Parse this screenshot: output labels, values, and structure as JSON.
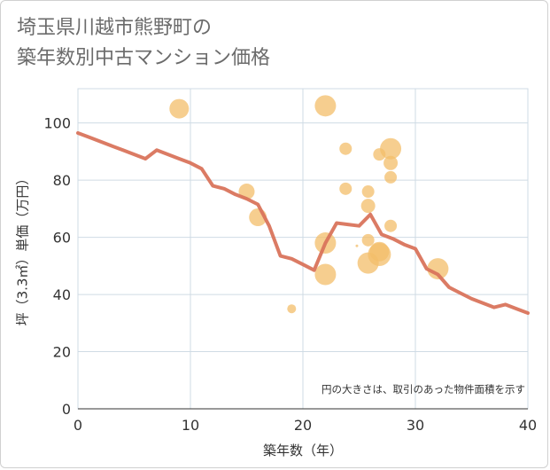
{
  "title_lines": [
    "埼玉県川越市熊野町の",
    "築年数別中古マンション価格"
  ],
  "chart_data": {
    "type": "scatter",
    "xlabel": "築年数（年）",
    "ylabel": "坪（3.3㎡）単価（万円）",
    "xlim": [
      0,
      40
    ],
    "ylim": [
      0,
      112
    ],
    "xticks": [
      0,
      10,
      20,
      30,
      40
    ],
    "yticks": [
      0,
      20,
      40,
      60,
      80,
      100
    ],
    "grid": true,
    "annotation": "円の大きさは、取引のあった物件面積を示す",
    "colors": {
      "bubble": "#f3bd6a",
      "line": "#d9745c",
      "grid": "#cfdbe4"
    },
    "bubbles": [
      {
        "x": 9,
        "y": 105,
        "size": 11
      },
      {
        "x": 15,
        "y": 76,
        "size": 9
      },
      {
        "x": 16,
        "y": 67,
        "size": 10
      },
      {
        "x": 19,
        "y": 35,
        "size": 5
      },
      {
        "x": 22,
        "y": 106,
        "size": 12
      },
      {
        "x": 22,
        "y": 58,
        "size": 12
      },
      {
        "x": 22,
        "y": 47,
        "size": 12
      },
      {
        "x": 23.8,
        "y": 91,
        "size": 7
      },
      {
        "x": 23.8,
        "y": 77,
        "size": 7
      },
      {
        "x": 24.8,
        "y": 57,
        "size": 1.5
      },
      {
        "x": 25.8,
        "y": 76,
        "size": 7
      },
      {
        "x": 25.8,
        "y": 71,
        "size": 8
      },
      {
        "x": 25.8,
        "y": 59,
        "size": 7
      },
      {
        "x": 25.8,
        "y": 51,
        "size": 12
      },
      {
        "x": 26.8,
        "y": 89,
        "size": 7
      },
      {
        "x": 26.8,
        "y": 55,
        "size": 11
      },
      {
        "x": 26.8,
        "y": 54,
        "size": 13
      },
      {
        "x": 27.8,
        "y": 91,
        "size": 12
      },
      {
        "x": 27.8,
        "y": 86,
        "size": 8
      },
      {
        "x": 27.8,
        "y": 81,
        "size": 7
      },
      {
        "x": 27.8,
        "y": 64,
        "size": 7
      },
      {
        "x": 32,
        "y": 49,
        "size": 12
      }
    ],
    "line": {
      "x": [
        0,
        1,
        2,
        3,
        4,
        5,
        6,
        7,
        8,
        9,
        10,
        11,
        12,
        13,
        14,
        15,
        16,
        17,
        18,
        19,
        20,
        21,
        22,
        23,
        24,
        25,
        26,
        27,
        28,
        29,
        30,
        31,
        32,
        33,
        34,
        35,
        36,
        37,
        38,
        39,
        40
      ],
      "y": [
        96.5,
        95,
        93.5,
        92,
        90.5,
        89,
        87.5,
        90.5,
        89,
        87.5,
        86,
        84,
        78,
        77,
        75,
        73.5,
        71.5,
        64,
        53.5,
        52.5,
        50.5,
        48.5,
        58,
        65,
        64.5,
        64,
        68,
        61,
        59.5,
        57.5,
        56,
        49,
        47,
        42.5,
        40.5,
        38.5,
        37,
        35.5,
        36.5,
        35,
        33.5
      ]
    }
  }
}
